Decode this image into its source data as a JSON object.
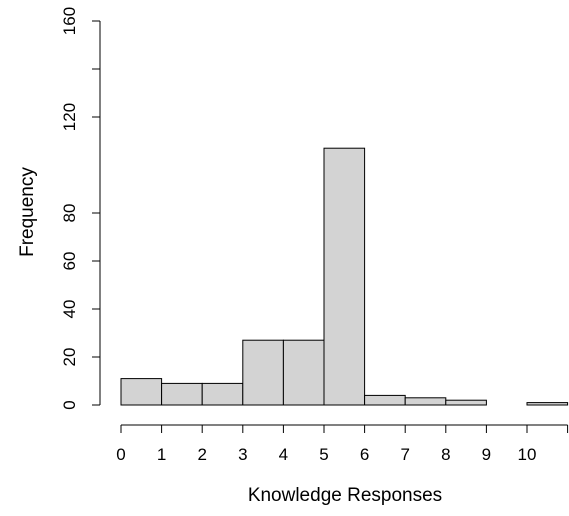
{
  "chart_data": {
    "type": "bar",
    "xlabel": "Knowledge Responses",
    "ylabel": "Frequency",
    "xlim": [
      0,
      11
    ],
    "ylim": [
      0,
      160
    ],
    "bins": [
      {
        "x0": 0,
        "x1": 1,
        "count": 11
      },
      {
        "x0": 1,
        "x1": 2,
        "count": 9
      },
      {
        "x0": 2,
        "x1": 3,
        "count": 9
      },
      {
        "x0": 3,
        "x1": 4,
        "count": 27
      },
      {
        "x0": 4,
        "x1": 5,
        "count": 27
      },
      {
        "x0": 5,
        "x1": 6,
        "count": 107
      },
      {
        "x0": 6,
        "x1": 7,
        "count": 4
      },
      {
        "x0": 7,
        "x1": 8,
        "count": 3
      },
      {
        "x0": 8,
        "x1": 9,
        "count": 2
      },
      {
        "x0": 9,
        "x1": 10,
        "count": 0
      },
      {
        "x0": 10,
        "x1": 11,
        "count": 1
      }
    ],
    "xticks": [
      0,
      1,
      2,
      3,
      4,
      5,
      6,
      7,
      8,
      9,
      10
    ],
    "yticks_major": [
      0,
      20,
      40,
      60,
      80,
      120,
      160
    ],
    "yticks_minor": [
      140
    ],
    "bar_fill": "#d3d3d3",
    "bar_stroke": "#000000",
    "grid": false
  }
}
